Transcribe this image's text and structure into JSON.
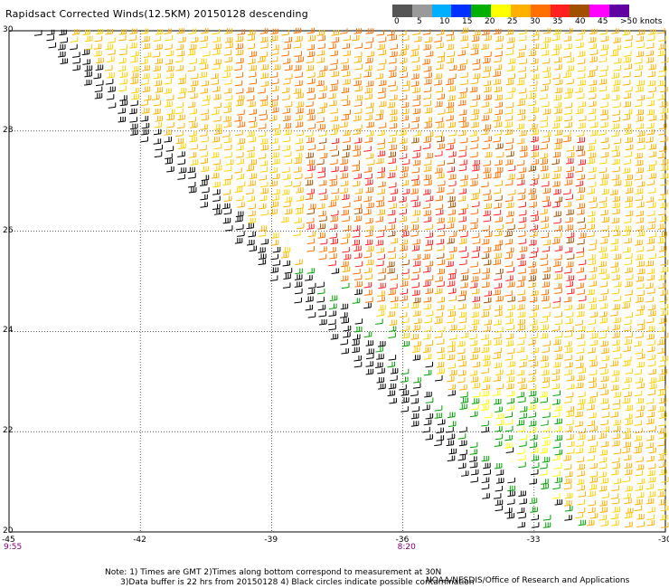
{
  "title": "Rapidsact Corrected Winds(12.5KM) 20150128 descending",
  "colorbar": {
    "labels": [
      "0",
      "5",
      "10",
      "15",
      "20",
      "25",
      "30",
      "35",
      "40",
      "45",
      ">50 knots"
    ],
    "colors": [
      "#555555",
      "#9a9a9a",
      "#00b0ff",
      "#0030ff",
      "#00b000",
      "#ffff00",
      "#ffb000",
      "#ff7000",
      "#ff2020",
      "#a05000",
      "#ff00ff",
      "#6000a0"
    ]
  },
  "map": {
    "lat_labels": [
      "30",
      "28",
      "26",
      "24",
      "22",
      "20"
    ],
    "lon_labels": [
      "-45",
      "-42",
      "-39",
      "-36",
      "-33",
      "-30"
    ],
    "lon_range": [
      -45,
      -30
    ],
    "lat_range": [
      20,
      30
    ],
    "time_labels": [
      {
        "lon": -45,
        "text": "9:55"
      },
      {
        "lon": -36,
        "text": "8:20"
      }
    ]
  },
  "note_lines": [
    "Note: 1) Times are GMT 2)Times along bottom correspond to measurement at 30N",
    "      3)Data buffer is 22 hrs from 20150128 4) Black circles indicate possible contamination"
  ],
  "credit": "NOAA/NESDIS/Office of Research and Applications"
}
